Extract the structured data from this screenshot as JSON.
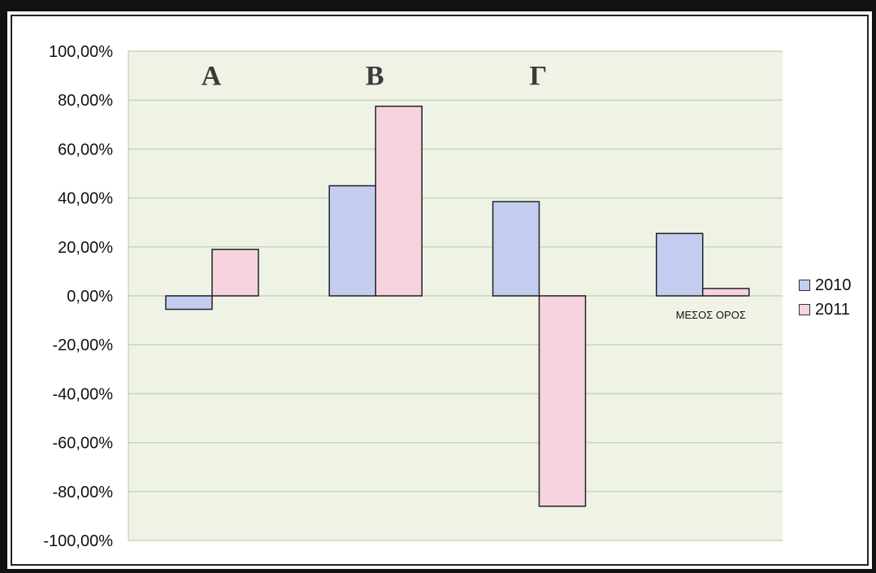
{
  "chart_data": {
    "type": "bar",
    "categories": [
      "Α",
      "Β",
      "Γ",
      "ΜΕΣΟΣ ΟΡΟΣ"
    ],
    "series": [
      {
        "name": "2010",
        "values": [
          -5.5,
          45.0,
          38.5,
          25.5
        ],
        "color": "#c3cdf0"
      },
      {
        "name": "2011",
        "values": [
          19.0,
          77.5,
          -86.0,
          3.0
        ],
        "color": "#f6d3de"
      }
    ],
    "y_ticks": [
      "100,00%",
      "80,00%",
      "60,00%",
      "40,00%",
      "20,00%",
      "0,00%",
      "-20,00%",
      "-40,00%",
      "-60,00%",
      "-80,00%",
      "-100,00%"
    ],
    "ylim": [
      -100,
      100
    ],
    "grid": true,
    "legend": "right",
    "title": "",
    "xlabel": "",
    "ylabel": ""
  },
  "legend": {
    "items": [
      "2010",
      "2011"
    ]
  }
}
